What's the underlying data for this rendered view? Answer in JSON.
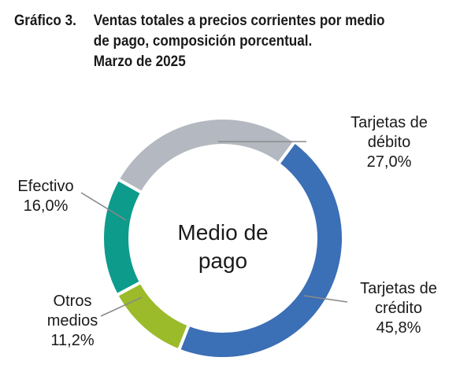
{
  "header": {
    "figure_number": "Gráfico 3.",
    "title_lines": [
      "Ventas totales a precios corrientes por medio",
      "de pago, composición porcentual.",
      "Marzo de 2025"
    ]
  },
  "chart_data": {
    "type": "pie",
    "donut": true,
    "center_label_lines": [
      "Medio de",
      "pago"
    ],
    "slices": [
      {
        "name_lines": [
          "Tarjetas de",
          "débito"
        ],
        "value_label": "27,0%",
        "value": 27.0,
        "color": "#b4b8c0"
      },
      {
        "name_lines": [
          "Tarjetas de",
          "crédito"
        ],
        "value_label": "45,8%",
        "value": 45.8,
        "color": "#3b6fb6"
      },
      {
        "name_lines": [
          "Otros",
          "medios"
        ],
        "value_label": "11,2%",
        "value": 11.2,
        "color": "#9bbb2a"
      },
      {
        "name_lines": [
          "Efectivo"
        ],
        "value_label": "16,0%",
        "value": 16.0,
        "color": "#0d9b8c"
      }
    ]
  }
}
